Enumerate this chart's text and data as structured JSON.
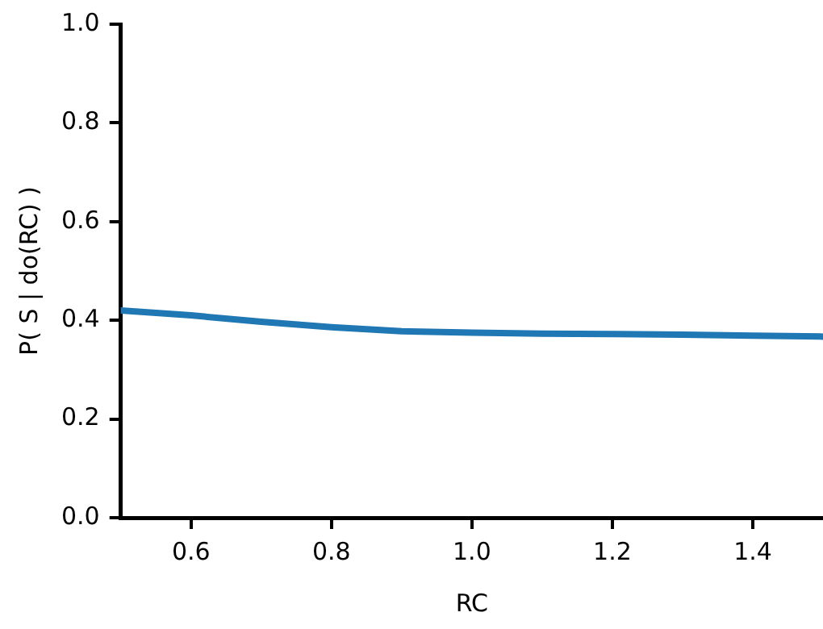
{
  "chart_data": {
    "type": "line",
    "xlabel": "RC",
    "ylabel": "P( S | do(RC) )",
    "xlim": [
      0.5,
      1.5
    ],
    "xticks": [
      0.6,
      0.8,
      {
        "value": 1,
        "label": "1.0"
      },
      1.2,
      1.4
    ],
    "ylim": [
      0,
      1
    ],
    "yticks": [
      {
        "value": 0,
        "label": "0.0"
      },
      0.2,
      0.4,
      0.6,
      0.8,
      {
        "value": 1,
        "label": "1.0"
      }
    ],
    "x": [
      0.5,
      0.6,
      0.7,
      0.8,
      0.9,
      1.0,
      1.1,
      1.2,
      1.3,
      1.4,
      1.5
    ],
    "series": [
      {
        "color": "#1f77b4",
        "values": [
          0.42,
          0.41,
          0.397,
          0.386,
          0.378,
          0.375,
          0.373,
          0.372,
          0.371,
          0.369,
          0.367
        ]
      }
    ],
    "grid": false,
    "legend": false,
    "marker": "none",
    "line_style": "solid"
  }
}
